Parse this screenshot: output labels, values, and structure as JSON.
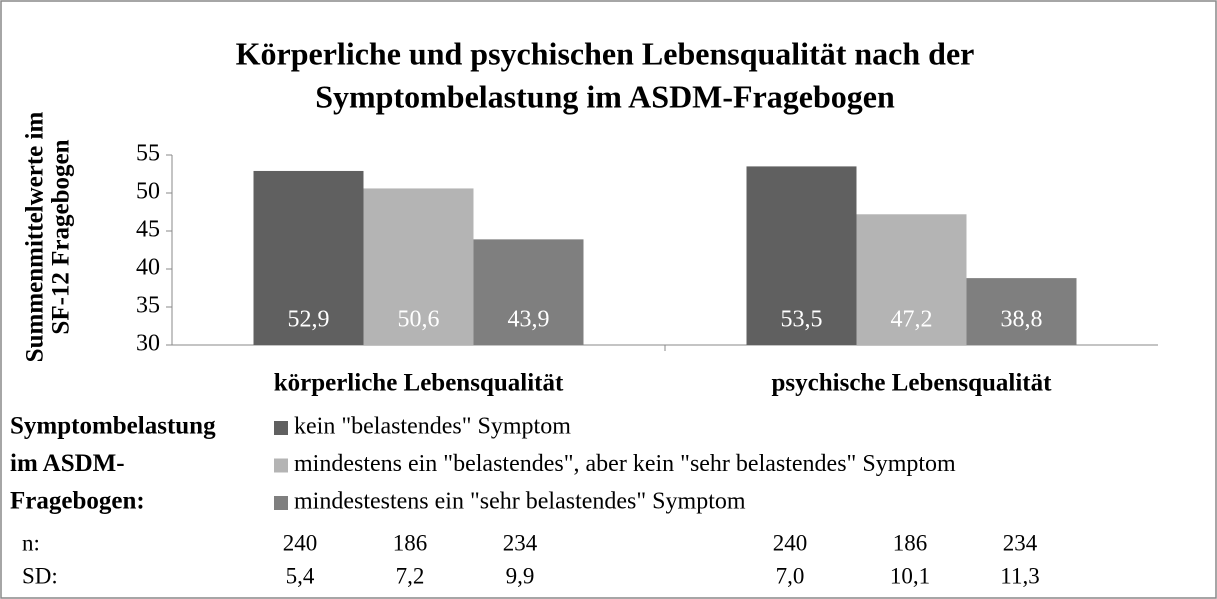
{
  "chart_data": {
    "type": "bar",
    "title": [
      "Körperliche und psychischen Lebensqualität nach der",
      "Symptombelastung im ASDM-Fragebogen"
    ],
    "y_label": [
      "Summenmittelwerte im",
      "SF-12 Fragebogen"
    ],
    "categories": [
      "körperliche Lebensqualität",
      "psychische Lebensqualität"
    ],
    "ylim": [
      30,
      55
    ],
    "yticks": [
      30,
      35,
      40,
      45,
      50,
      55
    ],
    "legend_title": [
      "Symptombelastung",
      "im ASDM-",
      "Fragebogen:"
    ],
    "series": [
      {
        "name": "kein \"belastendes\" Symptom",
        "color": "#606060",
        "values": [
          52.9,
          53.5
        ],
        "value_labels": [
          "52,9",
          "53,5"
        ]
      },
      {
        "name": "mindestens ein \"belastendes\", aber kein \"sehr belastendes\" Symptom",
        "color": "#b4b4b4",
        "values": [
          50.6,
          47.2
        ],
        "value_labels": [
          "50,6",
          "47,2"
        ]
      },
      {
        "name": "mindestestens ein \"sehr belastendes\" Symptom",
        "color": "#7f7f7f",
        "values": [
          43.9,
          38.8
        ],
        "value_labels": [
          "43,9",
          "38,8"
        ]
      }
    ],
    "table": [
      {
        "label": "n:",
        "values": [
          240,
          186,
          234,
          240,
          186,
          234
        ]
      },
      {
        "label": "SD:",
        "values": [
          "5,4",
          "7,2",
          "9,9",
          "7,0",
          "10,1",
          "11,3"
        ]
      }
    ]
  }
}
